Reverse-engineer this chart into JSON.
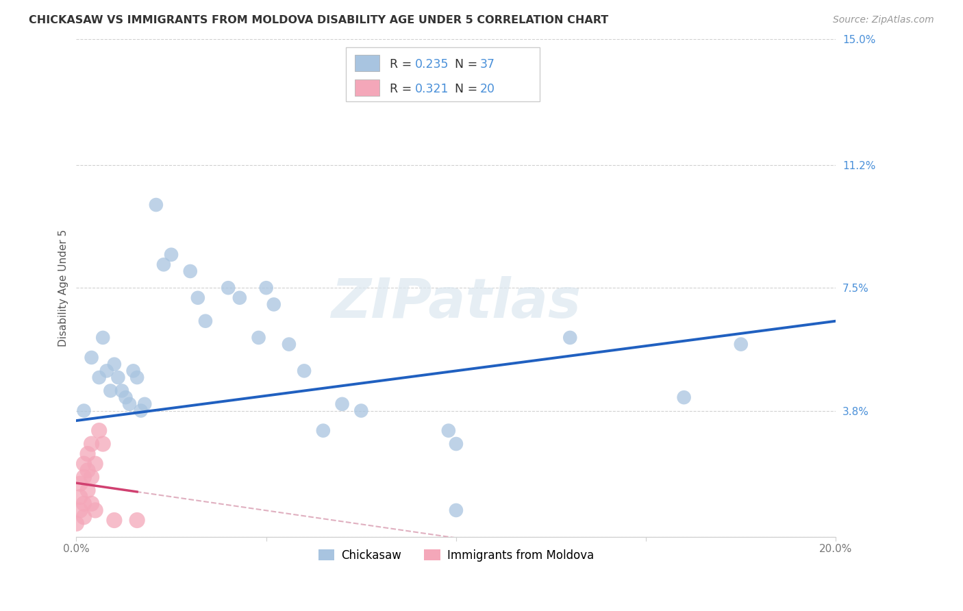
{
  "title": "CHICKASAW VS IMMIGRANTS FROM MOLDOVA DISABILITY AGE UNDER 5 CORRELATION CHART",
  "source": "Source: ZipAtlas.com",
  "ylabel": "Disability Age Under 5",
  "xlim": [
    0.0,
    0.2
  ],
  "ylim": [
    0.0,
    0.15
  ],
  "xticks": [
    0.0,
    0.05,
    0.1,
    0.15,
    0.2
  ],
  "xticklabels": [
    "0.0%",
    "",
    "",
    "",
    "20.0%"
  ],
  "ytick_right_labels": [
    "15.0%",
    "11.2%",
    "7.5%",
    "3.8%",
    ""
  ],
  "ytick_right_values": [
    0.15,
    0.112,
    0.075,
    0.038,
    0.0
  ],
  "chickasaw_points": [
    [
      0.002,
      0.038
    ],
    [
      0.004,
      0.054
    ],
    [
      0.006,
      0.048
    ],
    [
      0.007,
      0.06
    ],
    [
      0.008,
      0.05
    ],
    [
      0.009,
      0.044
    ],
    [
      0.01,
      0.052
    ],
    [
      0.011,
      0.048
    ],
    [
      0.012,
      0.044
    ],
    [
      0.013,
      0.042
    ],
    [
      0.014,
      0.04
    ],
    [
      0.015,
      0.05
    ],
    [
      0.016,
      0.048
    ],
    [
      0.017,
      0.038
    ],
    [
      0.018,
      0.04
    ],
    [
      0.021,
      0.1
    ],
    [
      0.023,
      0.082
    ],
    [
      0.025,
      0.085
    ],
    [
      0.03,
      0.08
    ],
    [
      0.032,
      0.072
    ],
    [
      0.034,
      0.065
    ],
    [
      0.04,
      0.075
    ],
    [
      0.043,
      0.072
    ],
    [
      0.048,
      0.06
    ],
    [
      0.05,
      0.075
    ],
    [
      0.052,
      0.07
    ],
    [
      0.056,
      0.058
    ],
    [
      0.06,
      0.05
    ],
    [
      0.065,
      0.032
    ],
    [
      0.07,
      0.04
    ],
    [
      0.075,
      0.038
    ],
    [
      0.098,
      0.032
    ],
    [
      0.1,
      0.028
    ],
    [
      0.13,
      0.06
    ],
    [
      0.1,
      0.008
    ],
    [
      0.16,
      0.042
    ],
    [
      0.175,
      0.058
    ]
  ],
  "moldova_points": [
    [
      0.0,
      0.004
    ],
    [
      0.001,
      0.008
    ],
    [
      0.001,
      0.012
    ],
    [
      0.001,
      0.016
    ],
    [
      0.002,
      0.006
    ],
    [
      0.002,
      0.01
    ],
    [
      0.002,
      0.018
    ],
    [
      0.002,
      0.022
    ],
    [
      0.003,
      0.014
    ],
    [
      0.003,
      0.02
    ],
    [
      0.003,
      0.025
    ],
    [
      0.004,
      0.01
    ],
    [
      0.004,
      0.018
    ],
    [
      0.004,
      0.028
    ],
    [
      0.005,
      0.008
    ],
    [
      0.005,
      0.022
    ],
    [
      0.006,
      0.032
    ],
    [
      0.007,
      0.028
    ],
    [
      0.01,
      0.005
    ],
    [
      0.016,
      0.005
    ]
  ],
  "blue_color": "#4a90d9",
  "pink_color": "#e06080",
  "bubble_blue": "#a8c4e0",
  "bubble_pink": "#f4a7b9",
  "trend_blue": "#2060c0",
  "trend_pink_solid": "#d04070",
  "trend_pink_dash": "#e0b0c0",
  "grid_color": "#d0d0d0",
  "background_color": "#ffffff",
  "watermark": "ZIPatlas",
  "watermark_color": "#dce8f0"
}
